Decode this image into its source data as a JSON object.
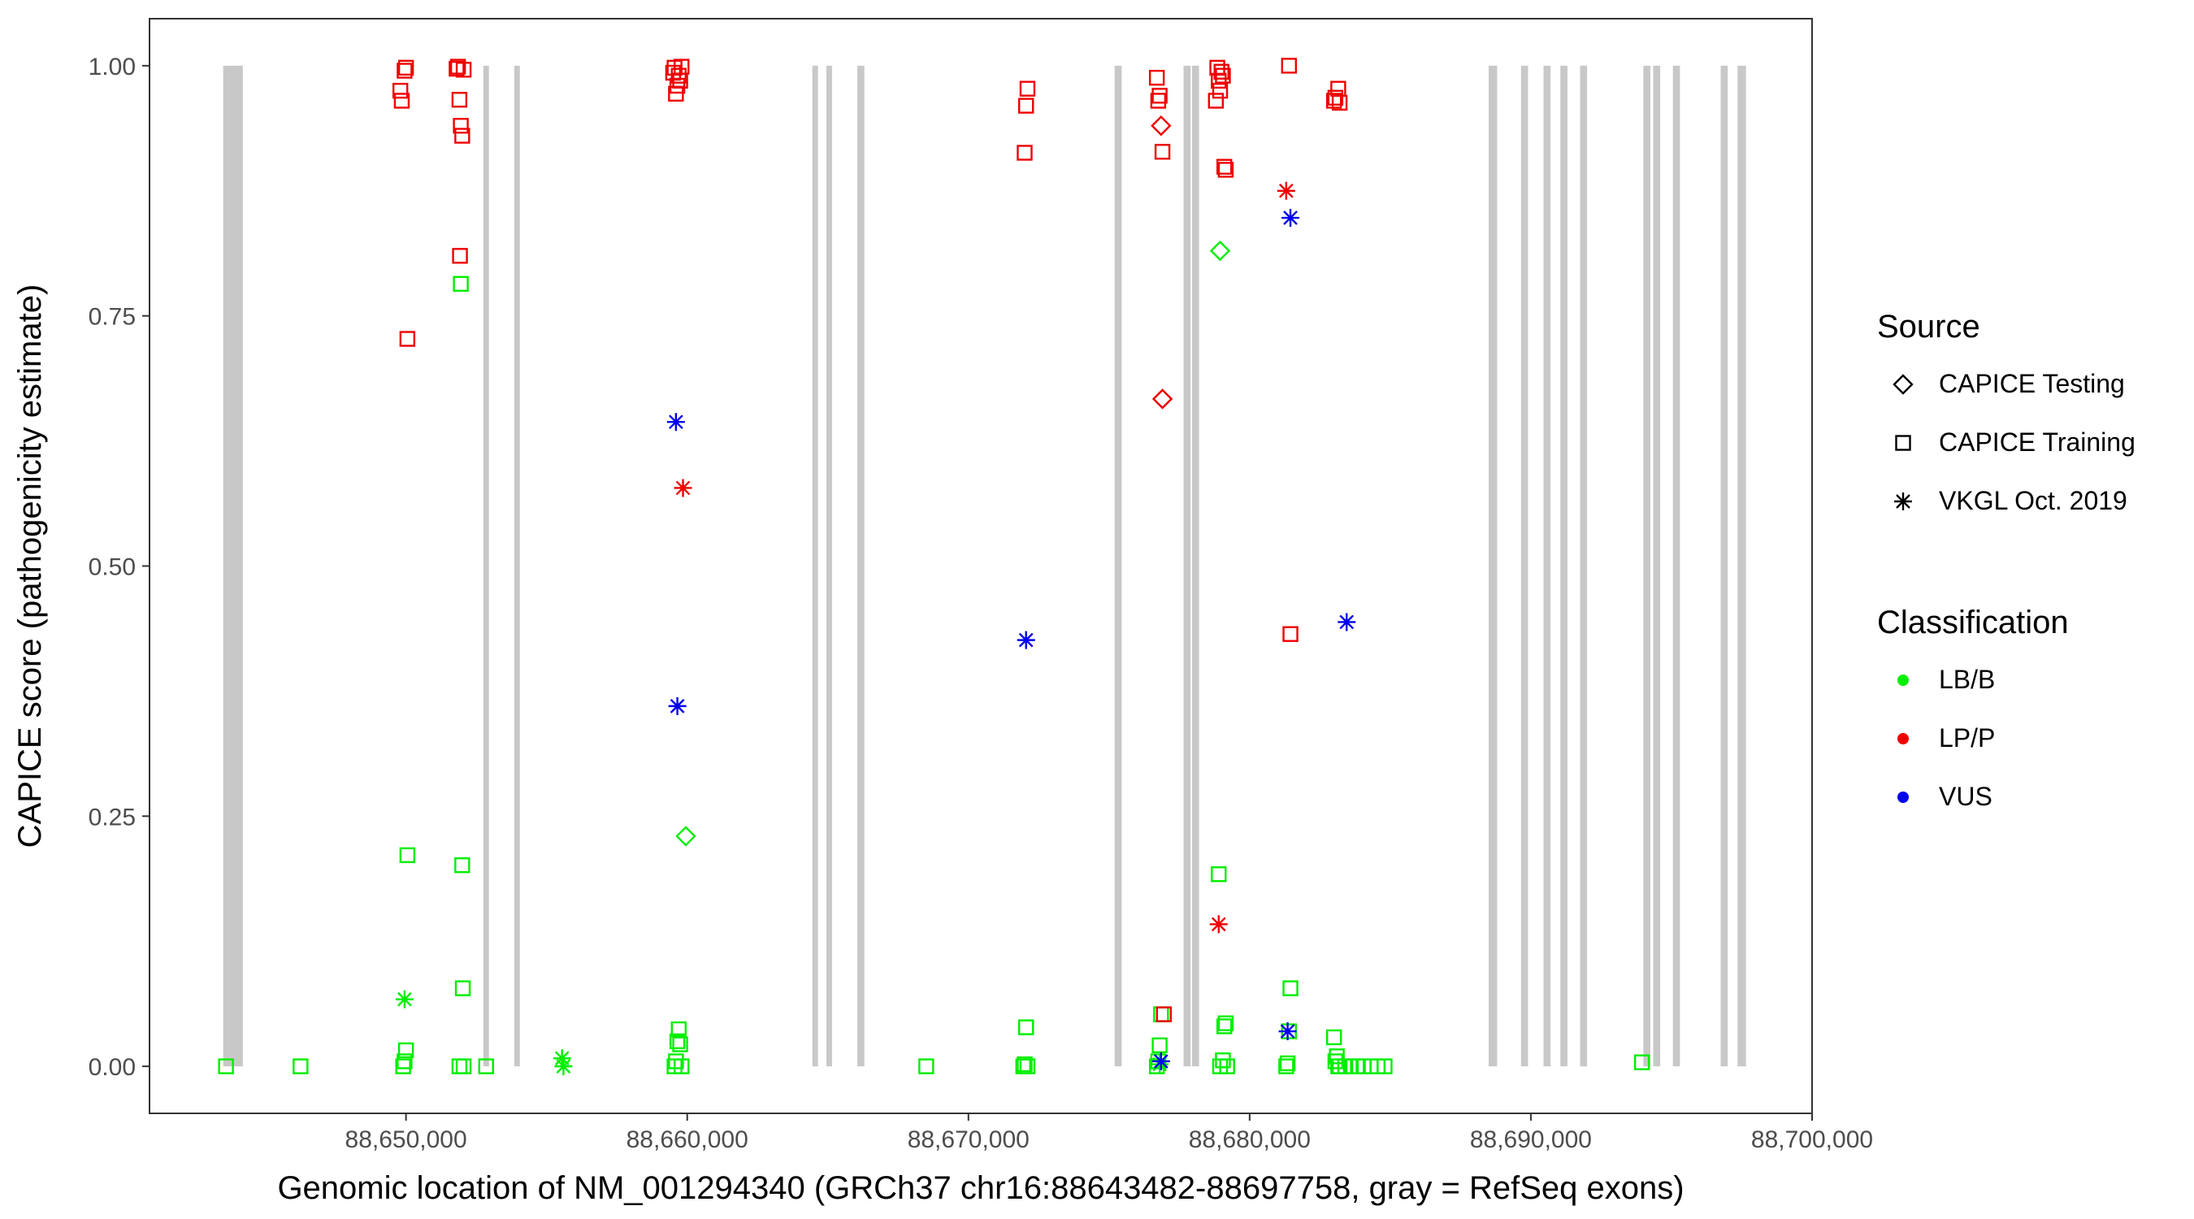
{
  "chart_data": {
    "type": "scatter",
    "xlabel": "Genomic location of NM_001294340 (GRCh37 chr16:88643482-88697758, gray = RefSeq exons)",
    "ylabel": "CAPICE score (pathogenicity estimate)",
    "xlim": [
      88640880,
      88700000
    ],
    "ylim": [
      -0.047,
      1.047
    ],
    "x_ticks": [
      88650000,
      88660000,
      88670000,
      88680000,
      88690000,
      88700000
    ],
    "x_tick_labels": [
      "88,650,000",
      "88,660,000",
      "88,670,000",
      "88,680,000",
      "88,690,000",
      "88,700,000"
    ],
    "y_ticks": [
      0,
      0.25,
      0.5,
      0.75,
      1
    ],
    "y_tick_labels": [
      "0.00",
      "0.25",
      "0.50",
      "0.75",
      "1.00"
    ],
    "grid": false,
    "legend_position": "right",
    "exons": [
      [
        88643500,
        88644200
      ],
      [
        88652750,
        88652950
      ],
      [
        88653850,
        88654050
      ],
      [
        88664450,
        88664650
      ],
      [
        88664950,
        88665150
      ],
      [
        88666050,
        88666300
      ],
      [
        88675200,
        88675450
      ],
      [
        88677650,
        88677900
      ],
      [
        88677950,
        88678200
      ],
      [
        88688500,
        88688800
      ],
      [
        88689650,
        88689900
      ],
      [
        88690450,
        88690700
      ],
      [
        88691050,
        88691300
      ],
      [
        88691750,
        88692000
      ],
      [
        88694000,
        88694250
      ],
      [
        88694350,
        88694600
      ],
      [
        88695050,
        88695300
      ],
      [
        88696750,
        88697000
      ],
      [
        88697350,
        88697650
      ]
    ],
    "legends": [
      {
        "title": "Source",
        "kind": "shape",
        "entries": [
          {
            "label": "CAPICE Testing",
            "shape": "diamond"
          },
          {
            "label": "CAPICE Training",
            "shape": "square"
          },
          {
            "label": "VKGL Oct. 2019",
            "shape": "asterisk"
          }
        ]
      },
      {
        "title": "Classification",
        "kind": "color",
        "entries": [
          {
            "label": "LB/B",
            "color": "#00ee00"
          },
          {
            "label": "LP/P",
            "color": "#ee0000"
          },
          {
            "label": "VUS",
            "color": "#0000ee"
          }
        ]
      }
    ],
    "series": [
      {
        "source": "CAPICE Training",
        "classification": "LB/B",
        "shape": "square",
        "color": "#00ee00",
        "points": [
          [
            88643600,
            0.0
          ],
          [
            88646250,
            0.0
          ],
          [
            88649900,
            0.0
          ],
          [
            88649950,
            0.005
          ],
          [
            88650000,
            0.016
          ],
          [
            88650050,
            0.211
          ],
          [
            88651950,
            0.782
          ],
          [
            88652000,
            0.201
          ],
          [
            88652020,
            0.078
          ],
          [
            88651900,
            0.0
          ],
          [
            88652050,
            0.0
          ],
          [
            88652850,
            0.0
          ],
          [
            88659550,
            0.0
          ],
          [
            88659600,
            0.005
          ],
          [
            88659650,
            0.025
          ],
          [
            88659700,
            0.037
          ],
          [
            88659750,
            0.022
          ],
          [
            88659800,
            0.0
          ],
          [
            88668500,
            0.0
          ],
          [
            88671950,
            0.0
          ],
          [
            88672000,
            0.002
          ],
          [
            88672050,
            0.039
          ],
          [
            88672100,
            0.0
          ],
          [
            88676700,
            0.0
          ],
          [
            88676750,
            0.005
          ],
          [
            88676800,
            0.021
          ],
          [
            88676850,
            0.052
          ],
          [
            88678900,
            0.192
          ],
          [
            88678950,
            0.0
          ],
          [
            88679050,
            0.006
          ],
          [
            88679100,
            0.04
          ],
          [
            88679150,
            0.043
          ],
          [
            88679200,
            0.0
          ],
          [
            88681300,
            0.0
          ],
          [
            88681350,
            0.003
          ],
          [
            88681400,
            0.035
          ],
          [
            88681450,
            0.078
          ],
          [
            88683000,
            0.029
          ],
          [
            88683050,
            0.005
          ],
          [
            88683100,
            0.01
          ],
          [
            88683150,
            0.0
          ],
          [
            88683200,
            0.0
          ],
          [
            88683400,
            0.0
          ],
          [
            88683600,
            0.0
          ],
          [
            88683850,
            0.0
          ],
          [
            88684050,
            0.0
          ],
          [
            88684300,
            0.0
          ],
          [
            88684550,
            0.0
          ],
          [
            88684800,
            0.0
          ],
          [
            88693950,
            0.004
          ]
        ]
      },
      {
        "source": "CAPICE Training",
        "classification": "LP/P",
        "shape": "square",
        "color": "#ee0000",
        "points": [
          [
            88649800,
            0.975
          ],
          [
            88649850,
            0.965
          ],
          [
            88649950,
            0.995
          ],
          [
            88650000,
            0.998
          ],
          [
            88650050,
            0.727
          ],
          [
            88651800,
            0.997
          ],
          [
            88651850,
            0.999
          ],
          [
            88651900,
            0.966
          ],
          [
            88651950,
            0.94
          ],
          [
            88652000,
            0.93
          ],
          [
            88651920,
            0.81
          ],
          [
            88652050,
            0.996
          ],
          [
            88659500,
            0.993
          ],
          [
            88659550,
            0.998
          ],
          [
            88659600,
            0.972
          ],
          [
            88659650,
            0.98
          ],
          [
            88659700,
            0.99
          ],
          [
            88659750,
            0.985
          ],
          [
            88659800,
            0.999
          ],
          [
            88672000,
            0.913
          ],
          [
            88672050,
            0.96
          ],
          [
            88672100,
            0.977
          ],
          [
            88676700,
            0.988
          ],
          [
            88676750,
            0.965
          ],
          [
            88676800,
            0.97
          ],
          [
            88676900,
            0.914
          ],
          [
            88676950,
            0.052
          ],
          [
            88678800,
            0.965
          ],
          [
            88678850,
            0.998
          ],
          [
            88678900,
            0.985
          ],
          [
            88678950,
            0.975
          ],
          [
            88679000,
            0.994
          ],
          [
            88679050,
            0.99
          ],
          [
            88679100,
            0.899
          ],
          [
            88679150,
            0.896
          ],
          [
            88681400,
            1.0
          ],
          [
            88681450,
            0.432
          ],
          [
            88683000,
            0.965
          ],
          [
            88683050,
            0.968
          ],
          [
            88683150,
            0.977
          ],
          [
            88683200,
            0.963
          ]
        ]
      },
      {
        "source": "CAPICE Testing",
        "classification": "LB/B",
        "shape": "diamond",
        "color": "#00ee00",
        "points": [
          [
            88659950,
            0.23
          ],
          [
            88678950,
            0.815
          ]
        ]
      },
      {
        "source": "CAPICE Testing",
        "classification": "LP/P",
        "shape": "diamond",
        "color": "#ee0000",
        "points": [
          [
            88676850,
            0.94
          ],
          [
            88676900,
            0.667
          ]
        ]
      },
      {
        "source": "VKGL Oct. 2019",
        "classification": "LB/B",
        "shape": "asterisk",
        "color": "#00ee00",
        "points": [
          [
            88649950,
            0.067
          ],
          [
            88655550,
            0.008
          ],
          [
            88655600,
            0.0
          ],
          [
            88676800,
            0.002
          ]
        ]
      },
      {
        "source": "VKGL Oct. 2019",
        "classification": "LP/P",
        "shape": "asterisk",
        "color": "#ee0000",
        "points": [
          [
            88659850,
            0.578
          ],
          [
            88678900,
            0.142
          ],
          [
            88681300,
            0.875
          ]
        ]
      },
      {
        "source": "VKGL Oct. 2019",
        "classification": "VUS",
        "shape": "asterisk",
        "color": "#0000ee",
        "points": [
          [
            88659600,
            0.644
          ],
          [
            88659650,
            0.36
          ],
          [
            88672050,
            0.426
          ],
          [
            88676850,
            0.005
          ],
          [
            88681350,
            0.035
          ],
          [
            88681450,
            0.848
          ],
          [
            88683450,
            0.444
          ]
        ]
      }
    ]
  }
}
